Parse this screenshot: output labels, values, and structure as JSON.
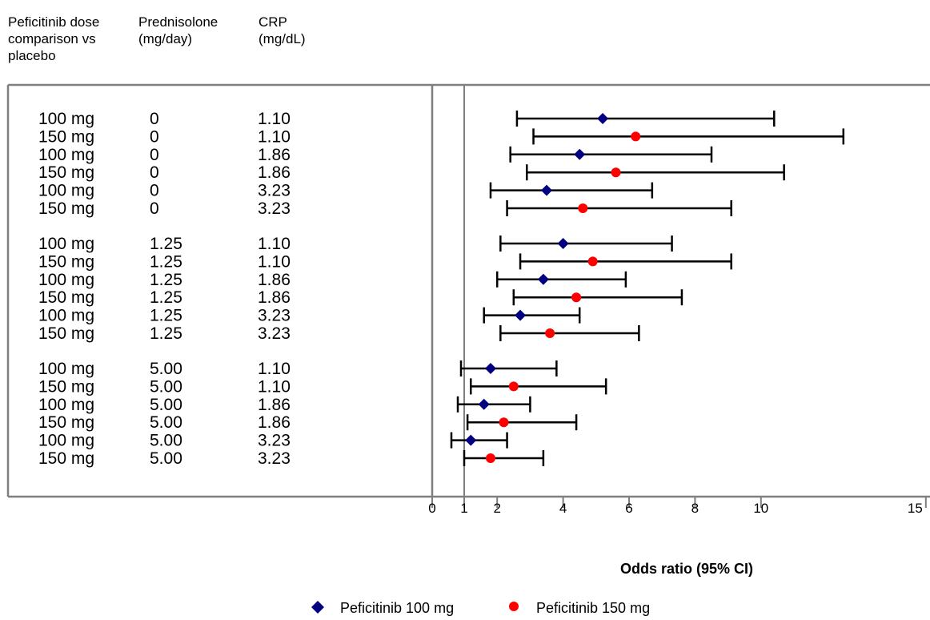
{
  "headers": {
    "dose": "Peficitinib dose\ncomparison vs\nplacebo",
    "pred": "Prednisolone\n(mg/day)",
    "crp": "CRP\n(mg/dL)"
  },
  "chart_data": {
    "type": "forest",
    "xlabel": "Odds ratio (95% CI)",
    "xlim": [
      0,
      15
    ],
    "xticks": [
      0,
      1,
      2,
      4,
      6,
      8,
      10,
      15
    ],
    "reference_line": 1,
    "colors": {
      "100 mg": "#000080",
      "150 mg": "#ff0000"
    },
    "legend": [
      {
        "name": "Peficitinib 100 mg",
        "marker": "diamond",
        "color": "#000080"
      },
      {
        "name": "Peficitinib 150 mg",
        "marker": "circle",
        "color": "#ff0000"
      }
    ],
    "rows": [
      {
        "dose": "100 mg",
        "pred": "0",
        "crp": "1.10",
        "or": 5.2,
        "lo": 2.6,
        "hi": 10.4,
        "group": 0
      },
      {
        "dose": "150 mg",
        "pred": "0",
        "crp": "1.10",
        "or": 6.2,
        "lo": 3.1,
        "hi": 12.5,
        "group": 0
      },
      {
        "dose": "100 mg",
        "pred": "0",
        "crp": "1.86",
        "or": 4.5,
        "lo": 2.4,
        "hi": 8.5,
        "group": 0
      },
      {
        "dose": "150 mg",
        "pred": "0",
        "crp": "1.86",
        "or": 5.6,
        "lo": 2.9,
        "hi": 10.7,
        "group": 0
      },
      {
        "dose": "100 mg",
        "pred": "0",
        "crp": "3.23",
        "or": 3.5,
        "lo": 1.8,
        "hi": 6.7,
        "group": 0
      },
      {
        "dose": "150 mg",
        "pred": "0",
        "crp": "3.23",
        "or": 4.6,
        "lo": 2.3,
        "hi": 9.1,
        "group": 0
      },
      {
        "dose": "100 mg",
        "pred": "1.25",
        "crp": "1.10",
        "or": 4.0,
        "lo": 2.1,
        "hi": 7.3,
        "group": 1
      },
      {
        "dose": "150 mg",
        "pred": "1.25",
        "crp": "1.10",
        "or": 4.9,
        "lo": 2.7,
        "hi": 9.1,
        "group": 1
      },
      {
        "dose": "100 mg",
        "pred": "1.25",
        "crp": "1.86",
        "or": 3.4,
        "lo": 2.0,
        "hi": 5.9,
        "group": 1
      },
      {
        "dose": "150 mg",
        "pred": "1.25",
        "crp": "1.86",
        "or": 4.4,
        "lo": 2.5,
        "hi": 7.6,
        "group": 1
      },
      {
        "dose": "100 mg",
        "pred": "1.25",
        "crp": "3.23",
        "or": 2.7,
        "lo": 1.6,
        "hi": 4.5,
        "group": 1
      },
      {
        "dose": "150 mg",
        "pred": "1.25",
        "crp": "3.23",
        "or": 3.6,
        "lo": 2.1,
        "hi": 6.3,
        "group": 1
      },
      {
        "dose": "100 mg",
        "pred": "5.00",
        "crp": "1.10",
        "or": 1.8,
        "lo": 0.9,
        "hi": 3.8,
        "group": 2
      },
      {
        "dose": "150 mg",
        "pred": "5.00",
        "crp": "1.10",
        "or": 2.5,
        "lo": 1.2,
        "hi": 5.3,
        "group": 2
      },
      {
        "dose": "100 mg",
        "pred": "5.00",
        "crp": "1.86",
        "or": 1.6,
        "lo": 0.8,
        "hi": 3.0,
        "group": 2
      },
      {
        "dose": "150 mg",
        "pred": "5.00",
        "crp": "1.86",
        "or": 2.2,
        "lo": 1.1,
        "hi": 4.4,
        "group": 2
      },
      {
        "dose": "100 mg",
        "pred": "5.00",
        "crp": "3.23",
        "or": 1.2,
        "lo": 0.6,
        "hi": 2.3,
        "group": 2
      },
      {
        "dose": "150 mg",
        "pred": "5.00",
        "crp": "3.23",
        "or": 1.8,
        "lo": 1.0,
        "hi": 3.4,
        "group": 2
      }
    ]
  }
}
